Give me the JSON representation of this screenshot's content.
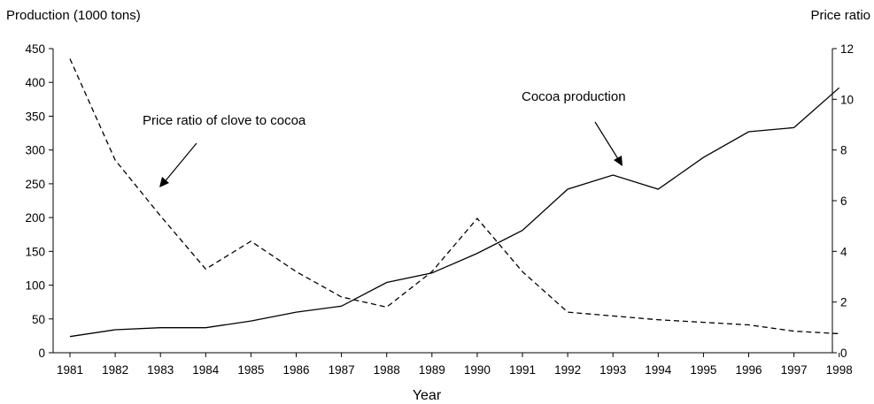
{
  "chart_data": {
    "type": "line",
    "title": "",
    "left_axis_title": "Production (1000 tons)",
    "right_axis_title": "Price ratio",
    "xlabel": "Year",
    "categories": [
      "1981",
      "1982",
      "1983",
      "1984",
      "1985",
      "1986",
      "1987",
      "1988",
      "1989",
      "1990",
      "1991",
      "1992",
      "1993",
      "1994",
      "1995",
      "1996",
      "1997",
      "1998"
    ],
    "ylim_left": [
      0,
      450
    ],
    "yticks_left": [
      "0",
      "50",
      "100",
      "150",
      "200",
      "250",
      "300",
      "350",
      "400",
      "450"
    ],
    "ylim_right": [
      0,
      12
    ],
    "yticks_right": [
      "0",
      "2",
      "4",
      "6",
      "8",
      "10",
      "12"
    ],
    "grid": false,
    "series": [
      {
        "name": "Cocoa production",
        "axis": "left",
        "style": "solid",
        "color": "#000000",
        "values": [
          24,
          34,
          37,
          37,
          47,
          60,
          69,
          104,
          118,
          147,
          181,
          242,
          263,
          242,
          289,
          327,
          333,
          392
        ]
      },
      {
        "name": "Price ratio of clove to cocoa",
        "axis": "right",
        "style": "dashed",
        "color": "#000000",
        "values": [
          11.6,
          7.6,
          5.4,
          3.3,
          4.4,
          3.2,
          2.2,
          1.8,
          3.2,
          5.3,
          3.2,
          1.6,
          1.45,
          1.3,
          1.2,
          1.1,
          0.85,
          0.75
        ]
      }
    ],
    "annotations": [
      {
        "text": "Price ratio of clove to cocoa",
        "series": 1
      },
      {
        "text": "Cocoa production",
        "series": 0
      }
    ]
  }
}
